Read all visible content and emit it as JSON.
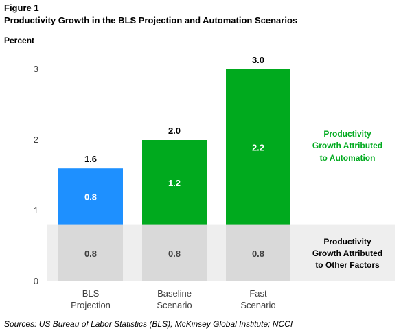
{
  "figure": {
    "label": "Figure 1",
    "title": "Productivity  Growth  in the BLS Projection  and Automation  Scenarios",
    "unit": "Percent",
    "source": "Sources: US Bureau of Labor Statistics (BLS); McKinsey Global Institute; NCCI"
  },
  "chart_data": {
    "type": "bar",
    "stacked": true,
    "categories": [
      [
        "BLS",
        "Projection"
      ],
      [
        "Baseline",
        "Scenario"
      ],
      [
        "Fast",
        "Scenario"
      ]
    ],
    "series": [
      {
        "name": "Productivity Growth Attributed to Other Factors",
        "values": [
          0.8,
          0.8,
          0.8
        ],
        "labels": [
          "0.8",
          "0.8",
          "0.8"
        ],
        "colors": [
          "#d9d9d9",
          "#d9d9d9",
          "#d9d9d9"
        ],
        "label_color": "#404040"
      },
      {
        "name": "Productivity Growth Attributed to Automation",
        "values": [
          0.8,
          1.2,
          2.2
        ],
        "labels": [
          "0.8",
          "1.2",
          "2.2"
        ],
        "colors": [
          "#1e90ff",
          "#00aa1e",
          "#00aa1e"
        ],
        "label_color": "#ffffff"
      }
    ],
    "totals": [
      "1.6",
      "2.0",
      "3.0"
    ],
    "yticks": [
      "0",
      "1",
      "2",
      "3"
    ],
    "ylim": [
      0,
      3
    ],
    "band_color": "#eeeeee",
    "legend": [
      {
        "lines": [
          "Productivity",
          "Growth Attributed",
          "to Automation"
        ],
        "color": "#00aa1e",
        "placement": "right"
      },
      {
        "lines": [
          "Productivity",
          "Growth Attributed",
          "to Other Factors"
        ],
        "color": "#000000",
        "placement": "right"
      }
    ]
  }
}
